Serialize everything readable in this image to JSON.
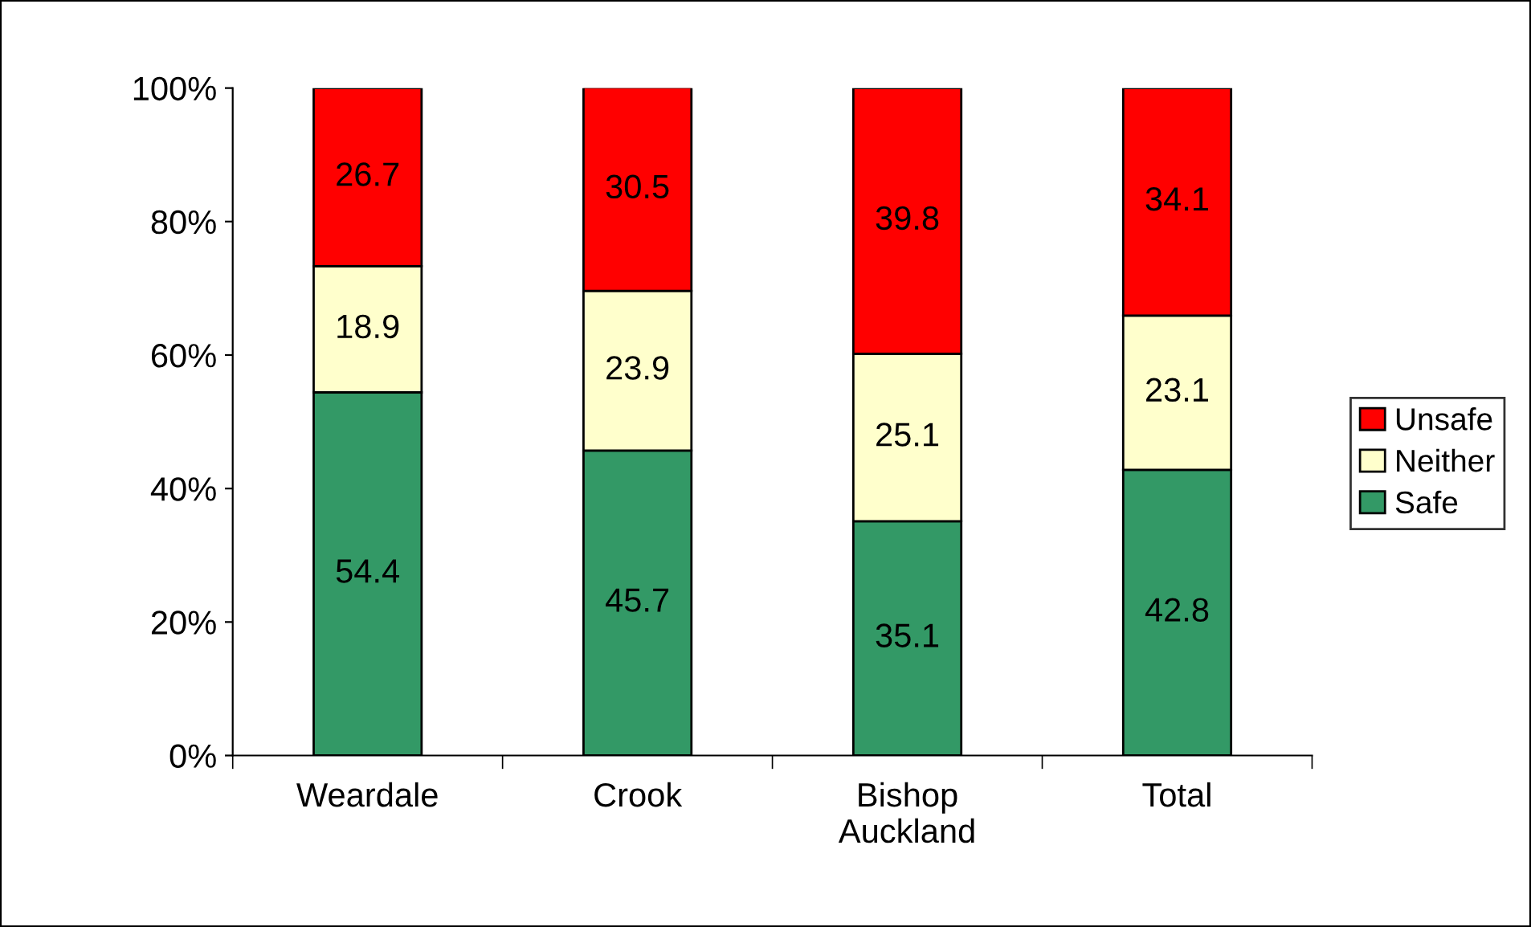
{
  "chart_data": {
    "type": "bar",
    "stacked": true,
    "categories": [
      "Weardale",
      "Crook",
      "Bishop\nAuckland",
      "Total"
    ],
    "series": [
      {
        "name": "Safe",
        "color": "#339966",
        "values": [
          54.4,
          45.7,
          35.1,
          42.8
        ]
      },
      {
        "name": "Neither",
        "color": "#ffffcc",
        "values": [
          18.9,
          23.9,
          25.1,
          23.1
        ]
      },
      {
        "name": "Unsafe",
        "color": "#ff0000",
        "values": [
          26.7,
          30.5,
          39.8,
          34.1
        ]
      }
    ],
    "ylim": [
      0,
      100
    ],
    "yticks": [
      {
        "value": 0,
        "label": "0%"
      },
      {
        "value": 20,
        "label": "20%"
      },
      {
        "value": 40,
        "label": "40%"
      },
      {
        "value": 60,
        "label": "60%"
      },
      {
        "value": 80,
        "label": "80%"
      },
      {
        "value": 100,
        "label": "100%"
      }
    ],
    "data_labels": true,
    "legend": "right",
    "grid": false
  }
}
